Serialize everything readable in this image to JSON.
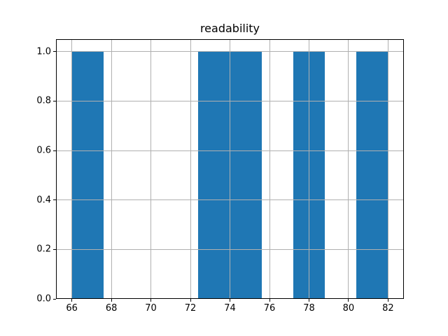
{
  "colors": {
    "bar_fill": "#1f77b4",
    "grid": "#b0b0b0",
    "spine": "#000000",
    "background": "#ffffff",
    "text": "#000000"
  },
  "chart_data": {
    "type": "bar",
    "subtype": "histogram",
    "title": "readability",
    "xlabel": "",
    "ylabel": "",
    "bin_edges": [
      66.0,
      67.6,
      69.2,
      70.8,
      72.4,
      74.0,
      75.6,
      77.2,
      78.8,
      80.4,
      82.0
    ],
    "values": [
      1,
      0,
      0,
      0,
      1,
      1,
      0,
      1,
      0,
      1
    ],
    "x_ticks": [
      66,
      68,
      70,
      72,
      74,
      76,
      78,
      80,
      82
    ],
    "y_ticks": [
      0.0,
      0.2,
      0.4,
      0.6,
      0.8,
      1.0
    ],
    "y_tick_decimals": 1,
    "xlim": [
      65.2,
      82.8
    ],
    "ylim": [
      0,
      1.05
    ],
    "grid": true,
    "grid_above_bars": true,
    "legend": false
  }
}
